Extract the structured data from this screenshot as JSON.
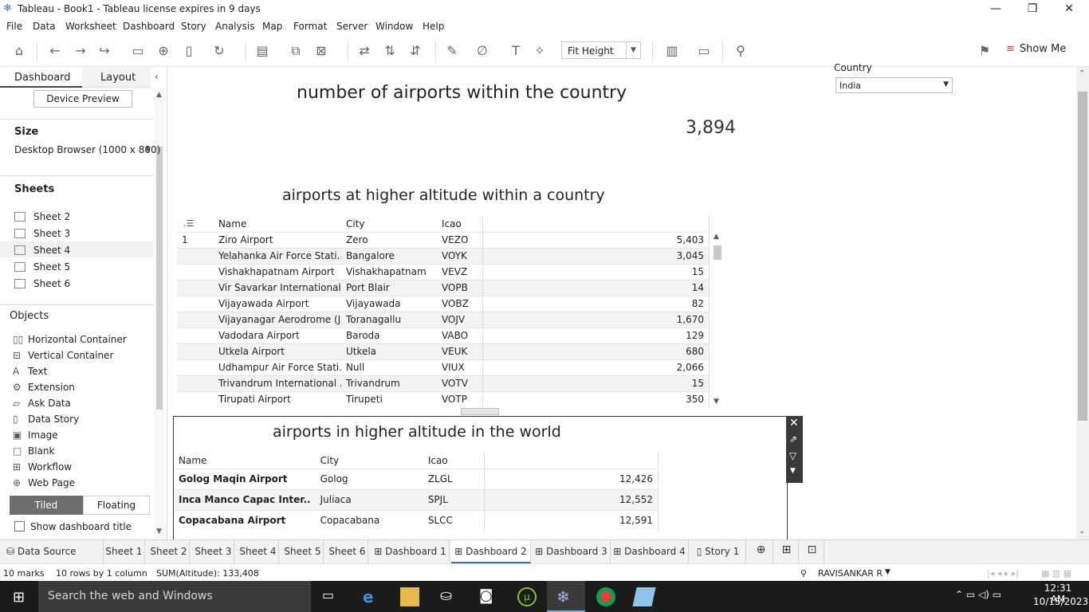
{
  "window": {
    "title": "Tableau - Book1 - Tableau license expires in 9 days"
  },
  "menu": [
    "File",
    "Data",
    "Worksheet",
    "Dashboard",
    "Story",
    "Analysis",
    "Map",
    "Format",
    "Server",
    "Window",
    "Help"
  ],
  "toolbar": {
    "fit_value": "Fit Height",
    "show_me": "Show Me"
  },
  "left_panel": {
    "tab_dashboard": "Dashboard",
    "tab_layout": "Layout",
    "device_preview": "Device Preview",
    "size_title": "Size",
    "size_value": "Desktop Browser (1000 x 800)",
    "sheets_title": "Sheets",
    "sheets": [
      "Sheet 2",
      "Sheet 3",
      "Sheet 4",
      "Sheet 5",
      "Sheet 6"
    ],
    "objects_title": "Objects",
    "objects": [
      "Horizontal Container",
      "Vertical Container",
      "Text",
      "Extension",
      "Ask Data",
      "Data Story",
      "Image",
      "Blank",
      "Workflow",
      "Web Page"
    ],
    "tiled": "Tiled",
    "floating": "Floating",
    "show_title": "Show dashboard title"
  },
  "dashboard": {
    "title1": "number of airports within the country",
    "count": "3,894",
    "filter_label": "Country",
    "filter_value": "India",
    "title2": "airports at higher altitude within a country",
    "table1_headers": [
      "Name",
      "City",
      "Icao"
    ],
    "table1_rownum": "1",
    "table1_rows": [
      [
        "Ziro Airport",
        "Zero",
        "VEZO",
        "5,403"
      ],
      [
        "Yelahanka Air Force Stati..",
        "Bangalore",
        "VOYK",
        "3,045"
      ],
      [
        "Vishakhapatnam Airport",
        "Vishakhapatnam",
        "VEVZ",
        "15"
      ],
      [
        "Vir Savarkar International..",
        "Port Blair",
        "VOPB",
        "14"
      ],
      [
        "Vijayawada Airport",
        "Vijayawada",
        "VOBZ",
        "82"
      ],
      [
        "Vijayanagar Aerodrome (J..",
        "Toranagallu",
        "VOJV",
        "1,670"
      ],
      [
        "Vadodara Airport",
        "Baroda",
        "VABO",
        "129"
      ],
      [
        "Utkela Airport",
        "Utkela",
        "VEUK",
        "680"
      ],
      [
        "Udhampur Air Force Stati..",
        "Null",
        "VIUX",
        "2,066"
      ],
      [
        "Trivandrum International ..",
        "Trivandrum",
        "VOTV",
        "15"
      ],
      [
        "Tirupati Airport",
        "Tirupeti",
        "VOTP",
        "350"
      ]
    ],
    "title3": "airports in higher altitude in the world",
    "table2_headers": [
      "Name",
      "City",
      "Icao"
    ],
    "table2_rows": [
      [
        "Golog Maqin Airport",
        "Golog",
        "ZLGL",
        "12,426"
      ],
      [
        "Inca Manco Capac Inter..",
        "Juliaca",
        "SPJL",
        "12,552"
      ],
      [
        "Copacabana Airport",
        "Copacabana",
        "SLCC",
        "12,591"
      ]
    ]
  },
  "tabs": [
    "Data Source",
    "Sheet 1",
    "Sheet 2",
    "Sheet 3",
    "Sheet 4",
    "Sheet 5",
    "Sheet 6",
    "Dashboard 1",
    "Dashboard 2",
    "Dashboard 3",
    "Dashboard 4",
    "Story 1"
  ],
  "status": {
    "marks": "10 marks",
    "rows": "10 rows by 1 column",
    "sum": "SUM(Altitude): 133,408",
    "user": "RAVISANKAR R"
  },
  "taskbar": {
    "search": "Search the web and Windows",
    "time": "12:31 AM",
    "date": "10/15/2023"
  }
}
